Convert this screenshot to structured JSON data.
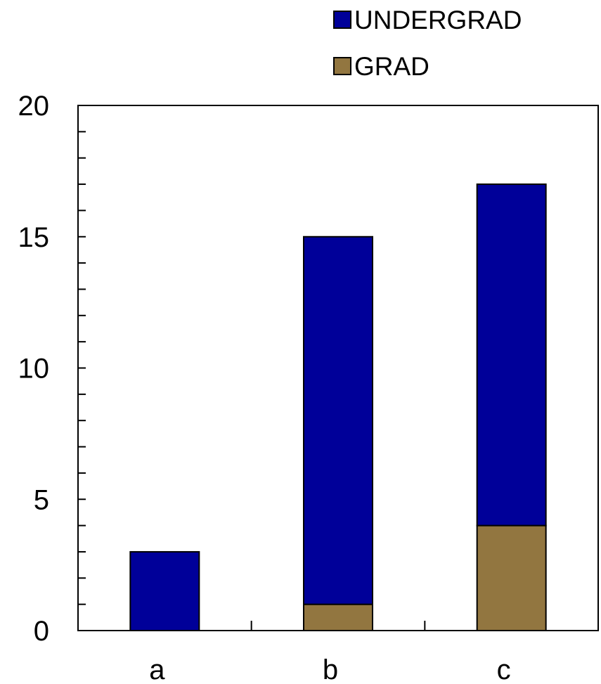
{
  "chart_data": {
    "type": "bar",
    "stacked": true,
    "categories": [
      "a",
      "b",
      "c"
    ],
    "series": [
      {
        "name": "GRAD",
        "values": [
          0,
          1,
          4
        ],
        "color": "#927640"
      },
      {
        "name": "UNDERGRAD",
        "values": [
          3,
          14,
          13
        ],
        "color": "#000099"
      }
    ],
    "ylim": [
      0,
      20
    ],
    "yticks": [
      "0",
      "5",
      "10",
      "15",
      "20"
    ],
    "y_minor_step": 1,
    "grid": false,
    "legend_position": "top-right",
    "legend_order": [
      "UNDERGRAD",
      "GRAD"
    ]
  }
}
